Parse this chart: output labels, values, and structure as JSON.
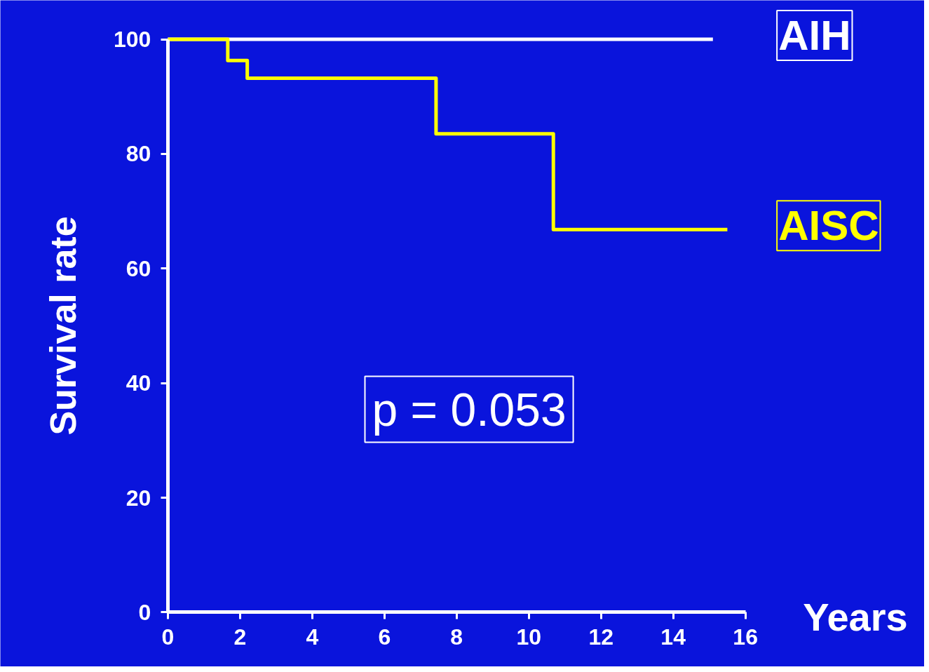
{
  "chart_data": {
    "type": "step",
    "xlabel": "Years",
    "ylabel": "Survival rate",
    "xlim": [
      0,
      16
    ],
    "xticks": [
      0,
      2,
      4,
      6,
      8,
      10,
      12,
      14,
      16
    ],
    "ylim": [
      0,
      100
    ],
    "yticks": [
      0,
      20,
      40,
      60,
      80,
      100
    ],
    "grid": false,
    "legend": false,
    "series": [
      {
        "name": "AIH",
        "color": "#ffffff",
        "x": [
          0,
          15.1
        ],
        "values": [
          100,
          100
        ]
      },
      {
        "name": "AISC",
        "color": "#ffff00",
        "x": [
          0,
          1.66,
          2.2,
          7.43,
          10.68,
          15.5
        ],
        "values": [
          100,
          96.3,
          93.2,
          83.5,
          66.8,
          66.8
        ]
      }
    ],
    "annotations": [
      "p = 0.053"
    ]
  }
}
